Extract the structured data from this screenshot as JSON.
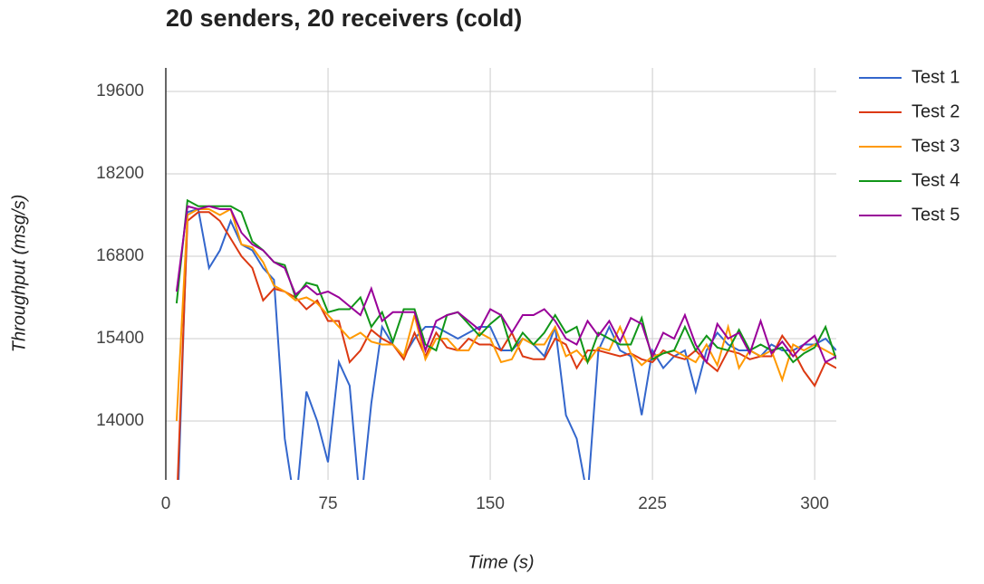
{
  "chart_data": {
    "type": "line",
    "title": "20 senders, 20 receivers (cold)",
    "x_label": "Time (s)",
    "y_label": "Throughput (msg/s)",
    "x": [
      5,
      10,
      15,
      20,
      25,
      30,
      35,
      40,
      45,
      50,
      55,
      60,
      65,
      70,
      75,
      80,
      85,
      90,
      95,
      100,
      105,
      110,
      115,
      120,
      125,
      130,
      135,
      140,
      145,
      150,
      155,
      160,
      165,
      170,
      175,
      180,
      185,
      190,
      195,
      200,
      205,
      210,
      215,
      220,
      225,
      230,
      235,
      240,
      245,
      250,
      255,
      260,
      265,
      270,
      275,
      280,
      285,
      290,
      295,
      300,
      305,
      310
    ],
    "series": [
      {
        "name": "Test 1",
        "color": "#3366cc",
        "values": [
          12000,
          17550,
          17600,
          16600,
          16900,
          17400,
          17000,
          16900,
          16600,
          16400,
          13700,
          12500,
          14500,
          14000,
          13300,
          15000,
          14600,
          12500,
          14300,
          15600,
          15300,
          15100,
          15400,
          15600,
          15600,
          15500,
          15400,
          15500,
          15600,
          15600,
          15200,
          15200,
          15400,
          15300,
          15100,
          15600,
          14100,
          13700,
          12700,
          15200,
          15600,
          15200,
          15100,
          14100,
          15200,
          14900,
          15100,
          15200,
          14500,
          15200,
          15500,
          15300,
          15200,
          15200,
          15100,
          15300,
          15200,
          15200,
          15300,
          15300,
          15400,
          15200
        ]
      },
      {
        "name": "Test 2",
        "color": "#dc3912",
        "values": [
          12500,
          17400,
          17550,
          17550,
          17400,
          17100,
          16800,
          16600,
          16050,
          16250,
          16200,
          16100,
          15900,
          16050,
          15700,
          15700,
          15000,
          15200,
          15550,
          15400,
          15300,
          15050,
          15500,
          15100,
          15500,
          15250,
          15200,
          15400,
          15300,
          15300,
          15200,
          15500,
          15100,
          15050,
          15050,
          15400,
          15300,
          14900,
          15200,
          15200,
          15150,
          15100,
          15150,
          15050,
          15000,
          15200,
          15100,
          15050,
          15200,
          15000,
          14850,
          15200,
          15150,
          15050,
          15100,
          15100,
          15450,
          15200,
          14850,
          14600,
          15000,
          14900
        ]
      },
      {
        "name": "Test 3",
        "color": "#ff9900",
        "values": [
          14000,
          17500,
          17600,
          17600,
          17500,
          17600,
          17000,
          16950,
          16700,
          16300,
          16200,
          16050,
          16100,
          16000,
          15800,
          15600,
          15400,
          15500,
          15350,
          15300,
          15300,
          15100,
          15800,
          15050,
          15400,
          15400,
          15200,
          15200,
          15500,
          15400,
          15000,
          15050,
          15400,
          15300,
          15300,
          15600,
          15100,
          15200,
          15000,
          15250,
          15200,
          15600,
          15150,
          14950,
          15100,
          15150,
          15200,
          15100,
          15000,
          15300,
          14950,
          15600,
          14900,
          15200,
          15100,
          15200,
          14700,
          15300,
          15200,
          15300,
          15200,
          15100
        ]
      },
      {
        "name": "Test 4",
        "color": "#109618",
        "values": [
          16000,
          17750,
          17650,
          17650,
          17650,
          17650,
          17550,
          17050,
          16900,
          16700,
          16650,
          16100,
          16350,
          16300,
          15850,
          15900,
          15900,
          16100,
          15600,
          15850,
          15350,
          15900,
          15900,
          15300,
          15200,
          15800,
          15850,
          15650,
          15450,
          15650,
          15800,
          15200,
          15500,
          15300,
          15500,
          15800,
          15500,
          15600,
          15000,
          15500,
          15400,
          15300,
          15300,
          15750,
          15050,
          15150,
          15200,
          15600,
          15200,
          15450,
          15250,
          15200,
          15550,
          15200,
          15300,
          15200,
          15250,
          15000,
          15150,
          15250,
          15600,
          15050
        ]
      },
      {
        "name": "Test 5",
        "color": "#990099",
        "values": [
          16200,
          17650,
          17600,
          17650,
          17600,
          17600,
          17200,
          17000,
          16900,
          16700,
          16600,
          16150,
          16300,
          16150,
          16200,
          16100,
          15950,
          15800,
          16250,
          15700,
          15850,
          15850,
          15850,
          15200,
          15700,
          15800,
          15850,
          15700,
          15550,
          15900,
          15800,
          15500,
          15800,
          15800,
          15900,
          15700,
          15400,
          15300,
          15700,
          15450,
          15700,
          15350,
          15750,
          15650,
          15100,
          15500,
          15400,
          15800,
          15300,
          15000,
          15650,
          15400,
          15500,
          15150,
          15700,
          15150,
          15350,
          15100,
          15300,
          15450,
          15000,
          15100
        ]
      }
    ],
    "xlim": [
      0,
      310
    ],
    "ylim": [
      13000,
      20000
    ],
    "xticks": [
      0,
      75,
      150,
      225,
      300
    ],
    "yticks": [
      14000,
      15400,
      16800,
      18200,
      19600
    ],
    "grid": true,
    "legend": "right"
  }
}
